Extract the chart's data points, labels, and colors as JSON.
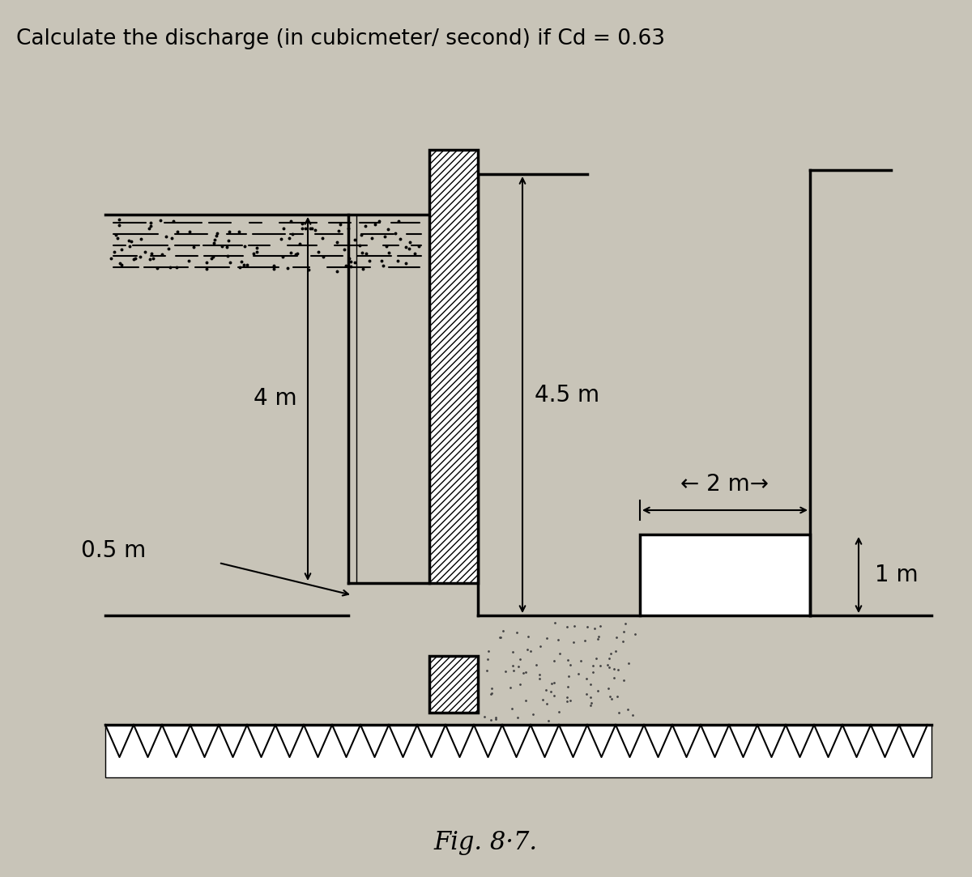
{
  "title": "Calculate the discharge (in cubicmeter/ second) if Cd = 0.63",
  "fig_label": "Fig. 8·7.",
  "bg_color": "#c8c4b8",
  "line_color": "#000000",
  "dim_4m": "4 m",
  "dim_45m": "4.5 m",
  "dim_2m": "← 2 m→",
  "dim_05m": "0.5 m",
  "dim_1m": "1 m",
  "figsize": [
    12.0,
    10.83
  ],
  "dpi": 100
}
